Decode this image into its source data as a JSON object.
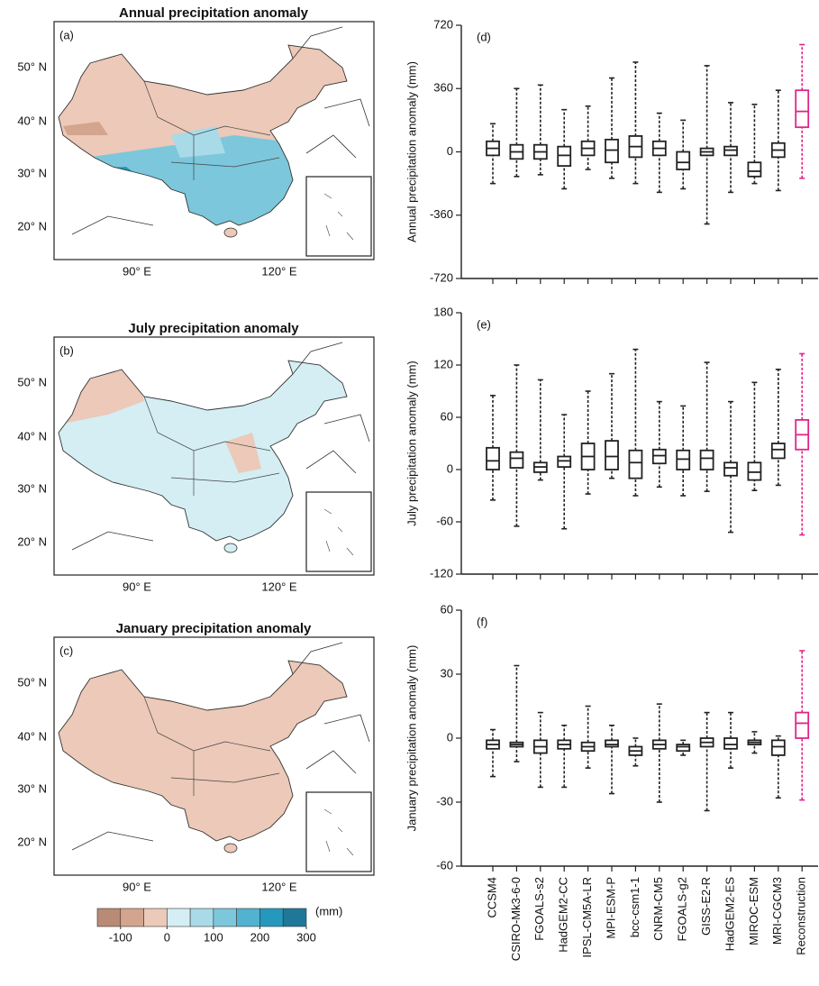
{
  "maps": [
    {
      "title": "Annual precipitation anomaly",
      "panel": "(a)"
    },
    {
      "title": "July precipitation anomaly",
      "panel": "(b)"
    },
    {
      "title": "January precipitation anomaly",
      "panel": "(c)"
    }
  ],
  "lat_labels": [
    "50° N",
    "40° N",
    "30° N",
    "20° N"
  ],
  "lon_labels": [
    "90° E",
    "120° E"
  ],
  "colorbar": {
    "unit": "(mm)",
    "clim": [
      -150,
      300
    ],
    "ticks": [
      -100,
      0,
      100,
      200,
      300
    ],
    "colors": [
      "#b98a74",
      "#d3a58e",
      "#ecc9b8",
      "#d4eef4",
      "#a8dbe7",
      "#7cc7db",
      "#52b2d0",
      "#2598bd",
      "#1f7898"
    ]
  },
  "chart_data": [
    {
      "type": "box",
      "panel": "(d)",
      "ylabel": "Annual precipitation anomaly (mm)",
      "ylim": [
        -720,
        720
      ],
      "yticks": [
        -720,
        -360,
        0,
        360,
        720
      ],
      "colors": [
        "#222222",
        "#222222",
        "#222222",
        "#222222",
        "#222222",
        "#222222",
        "#222222",
        "#222222",
        "#222222",
        "#222222",
        "#222222",
        "#222222",
        "#222222",
        "#e0248a"
      ],
      "low": [
        -180,
        -140,
        -130,
        -210,
        -100,
        -150,
        -180,
        -230,
        -210,
        -410,
        -230,
        -180,
        -220,
        -150
      ],
      "q1": [
        -20,
        -40,
        -40,
        -80,
        -20,
        -60,
        -30,
        -20,
        -100,
        -20,
        -20,
        -140,
        -30,
        140
      ],
      "median": [
        20,
        0,
        0,
        -20,
        20,
        10,
        30,
        20,
        -60,
        0,
        10,
        -110,
        10,
        230
      ],
      "q3": [
        60,
        40,
        40,
        30,
        60,
        70,
        90,
        60,
        0,
        20,
        30,
        -60,
        50,
        350
      ],
      "high": [
        160,
        360,
        380,
        240,
        260,
        420,
        510,
        220,
        180,
        490,
        280,
        270,
        350,
        610
      ]
    },
    {
      "type": "box",
      "panel": "(e)",
      "ylabel": "July precipitation anomaly (mm)",
      "ylim": [
        -120,
        180
      ],
      "yticks": [
        -120,
        -60,
        0,
        60,
        120,
        180
      ],
      "colors": [
        "#222222",
        "#222222",
        "#222222",
        "#222222",
        "#222222",
        "#222222",
        "#222222",
        "#222222",
        "#222222",
        "#222222",
        "#222222",
        "#222222",
        "#222222",
        "#e0248a"
      ],
      "low": [
        -35,
        -65,
        -12,
        -68,
        -28,
        -10,
        -30,
        -20,
        -30,
        -25,
        -72,
        -24,
        -18,
        -75
      ],
      "q1": [
        0,
        2,
        -3,
        3,
        0,
        0,
        -10,
        7,
        0,
        0,
        -7,
        -12,
        13,
        23
      ],
      "median": [
        10,
        13,
        3,
        10,
        15,
        15,
        8,
        16,
        12,
        13,
        2,
        -3,
        23,
        40
      ],
      "q3": [
        25,
        20,
        8,
        15,
        30,
        33,
        22,
        23,
        22,
        22,
        8,
        8,
        30,
        57
      ],
      "high": [
        85,
        120,
        103,
        63,
        90,
        110,
        138,
        78,
        73,
        123,
        78,
        100,
        115,
        133
      ]
    },
    {
      "type": "box",
      "panel": "(f)",
      "ylabel": "January precipitation anomaly (mm)",
      "ylim": [
        -60,
        60
      ],
      "yticks": [
        -60,
        -30,
        0,
        30,
        60
      ],
      "categories": [
        "CCSM4",
        "CSIRO-Mk3-6-0",
        "FGOALS-s2",
        "HadGEM2-CC",
        "IPSL-CM5A-LR",
        "MPI-ESM-P",
        "bcc-csm1-1",
        "CNRM-CM5",
        "FGOALS-g2",
        "GISS-E2-R",
        "HadGEM2-ES",
        "MIROC-ESM",
        "MRI-CGCM3",
        "Reconstruction"
      ],
      "colors": [
        "#222222",
        "#222222",
        "#222222",
        "#222222",
        "#222222",
        "#222222",
        "#222222",
        "#222222",
        "#222222",
        "#222222",
        "#222222",
        "#222222",
        "#222222",
        "#e0248a"
      ],
      "low": [
        -18,
        -11,
        -23,
        -23,
        -14,
        -26,
        -13,
        -30,
        -8,
        -34,
        -14,
        -7,
        -28,
        -29
      ],
      "q1": [
        -5,
        -4,
        -7,
        -5,
        -6,
        -4,
        -8,
        -5,
        -6,
        -4,
        -5,
        -3,
        -8,
        0
      ],
      "median": [
        -3,
        -3,
        -4,
        -3,
        -4,
        -3,
        -6,
        -3,
        -4,
        -2,
        -3,
        -2,
        -4,
        7
      ],
      "q3": [
        -1,
        -2,
        -1,
        -1,
        -2,
        -1,
        -4,
        -1,
        -3,
        0,
        0,
        -1,
        -1,
        12
      ],
      "high": [
        4,
        34,
        12,
        6,
        15,
        6,
        0,
        16,
        -1,
        12,
        12,
        3,
        1,
        41
      ]
    }
  ]
}
